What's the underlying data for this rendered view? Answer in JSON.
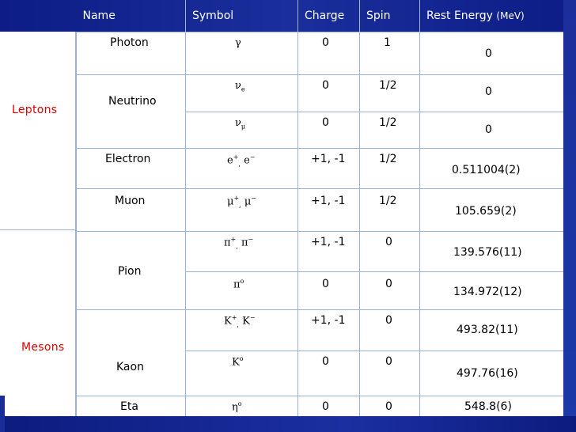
{
  "columns": {
    "name": "Name",
    "symbol": "Symbol",
    "charge": "Charge",
    "spin": "Spin",
    "rest": "Rest Energy",
    "rest_unit": "(MeV)"
  },
  "groups": {
    "leptons": "Leptons",
    "mesons": "Mesons"
  },
  "rows": [
    {
      "name": "Photon",
      "charge": "0",
      "spin": "1",
      "rest": "0"
    },
    {
      "name": "Neutrino",
      "charge": "0",
      "spin": "1/2",
      "rest": "0"
    },
    {
      "name": "",
      "charge": "0",
      "spin": "1/2",
      "rest": "0"
    },
    {
      "name": "Electron",
      "charge": "+1, -1",
      "spin": "1/2",
      "rest": "0.511004(2)"
    },
    {
      "name": "Muon",
      "charge": "+1, -1",
      "spin": "1/2",
      "rest": "105.659(2)"
    },
    {
      "name": "Pion",
      "charge": "+1, -1",
      "spin": "0",
      "rest": "139.576(11)"
    },
    {
      "name": "",
      "charge": "0",
      "spin": "0",
      "rest": "134.972(12)"
    },
    {
      "name": "Kaon",
      "charge": "+1, -1",
      "spin": "0",
      "rest": "493.82(11)"
    },
    {
      "name": "",
      "charge": "0",
      "spin": "0",
      "rest": "497.76(16)"
    },
    {
      "name": "Eta",
      "charge": "0",
      "spin": "0",
      "rest": "548.8(6)"
    }
  ],
  "symbols": {
    "photon": "γ",
    "nu": "ν",
    "nu_e_sub": "e",
    "nu_mu_sub": "μ",
    "e": "e",
    "mu": "μ",
    "pi": "π",
    "K": "K",
    "eta": "η",
    "plus": "+",
    "minus": "−",
    "zero": "o",
    "comma": ","
  }
}
